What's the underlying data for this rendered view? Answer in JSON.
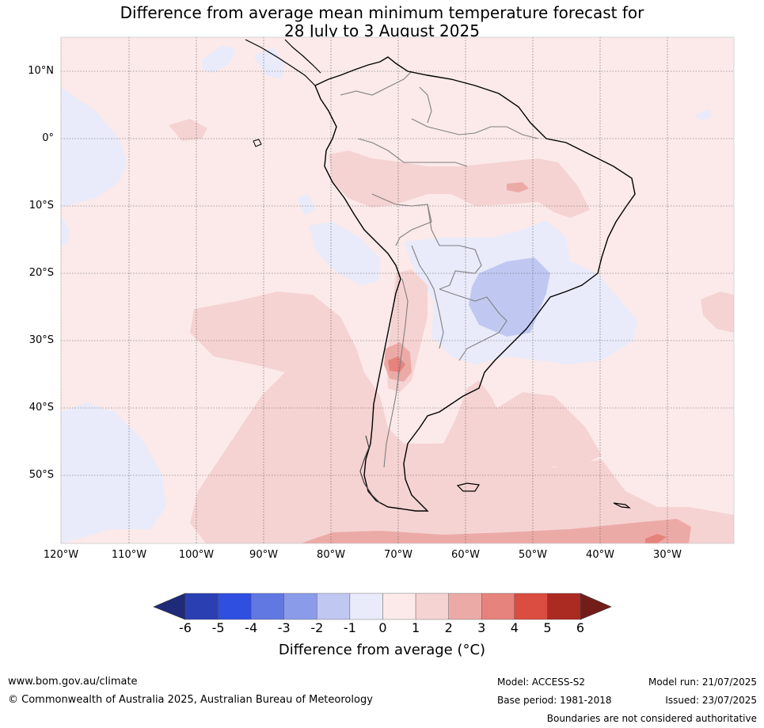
{
  "title": {
    "line1": "Difference from average mean minimum temperature forecast for",
    "line2": "28 July to 3 August 2025"
  },
  "map": {
    "lat_labels": [
      "10°N",
      "0°",
      "10°S",
      "20°S",
      "30°S",
      "40°S",
      "50°S"
    ],
    "lon_labels": [
      "120°W",
      "110°W",
      "100°W",
      "90°W",
      "80°W",
      "70°W",
      "60°W",
      "50°W",
      "40°W",
      "30°W"
    ],
    "colors": {
      "neg6": "#1f2a78",
      "neg5": "#2a3fb1",
      "neg4": "#2f4fe0",
      "neg3": "#6178e2",
      "neg2": "#8a9be9",
      "neg1": "#c0c8f2",
      "zero_neg": "#e9ebfa",
      "zero_pos": "#fbeae9",
      "pos1": "#f5d3d2",
      "pos2": "#ecaaa7",
      "pos3": "#e6837c",
      "pos4": "#da4d40",
      "pos5": "#ab2a21",
      "pos6": "#731d19",
      "coast": "#000000",
      "border": "#808080",
      "grid": "#555555"
    }
  },
  "colorbar": {
    "ticks": [
      "-6",
      "-5",
      "-4",
      "-3",
      "-2",
      "-1",
      "0",
      "1",
      "2",
      "3",
      "4",
      "5",
      "6"
    ],
    "label": "Difference from average (°C)"
  },
  "footer": {
    "url": "www.bom.gov.au/climate",
    "copyright": "© Commonwealth of Australia 2025, Australian Bureau of Meteorology",
    "model": "Model: ACCESS-S2",
    "base_period": "Base period: 1981-2018",
    "model_run": "Model run: 21/07/2025",
    "issued": "Issued: 23/07/2025",
    "disclaimer": "Boundaries are not considered authoritative"
  }
}
